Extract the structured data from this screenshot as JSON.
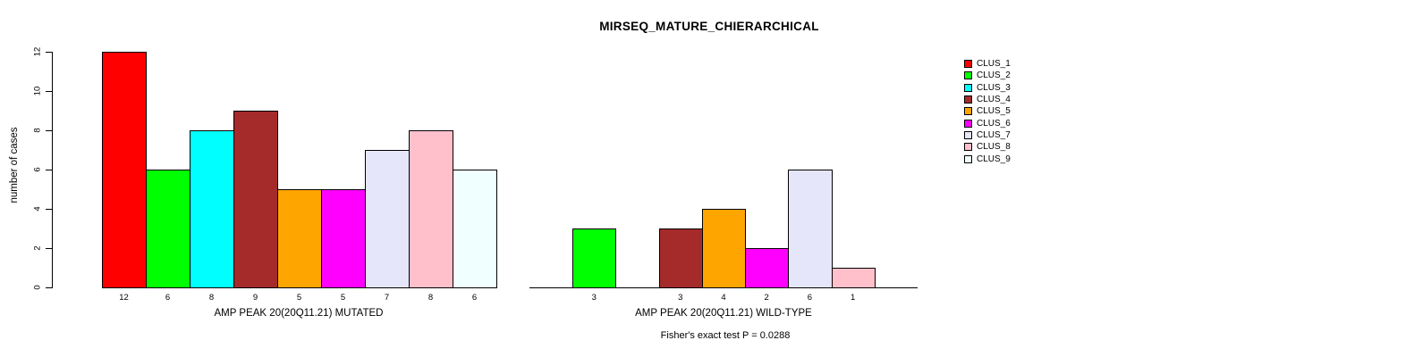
{
  "title": "MIRSEQ_MATURE_CHIERARCHICAL",
  "footer": "Fisher's exact test P = 0.0288",
  "ylabel": "number of cases",
  "legend": {
    "position": "right",
    "entries": [
      {
        "label": "CLUS_1",
        "color": "#FF0000"
      },
      {
        "label": "CLUS_2",
        "color": "#00FF00"
      },
      {
        "label": "CLUS_3",
        "color": "#00FFFF"
      },
      {
        "label": "CLUS_4",
        "color": "#A52A2A"
      },
      {
        "label": "CLUS_5",
        "color": "#FFA500"
      },
      {
        "label": "CLUS_6",
        "color": "#FF00FF"
      },
      {
        "label": "CLUS_7",
        "color": "#E6E6FA"
      },
      {
        "label": "CLUS_8",
        "color": "#FFC0CB"
      },
      {
        "label": "CLUS_9",
        "color": "#F0FFFF"
      }
    ]
  },
  "chart_data": [
    {
      "type": "bar",
      "panel": "mutated",
      "xlabel": "AMP PEAK 20(20Q11.21) MUTATED",
      "ylabel": "number of cases",
      "categories": [
        "CLUS_1",
        "CLUS_2",
        "CLUS_3",
        "CLUS_4",
        "CLUS_5",
        "CLUS_6",
        "CLUS_7",
        "CLUS_8",
        "CLUS_9"
      ],
      "values": [
        12,
        6,
        8,
        9,
        5,
        5,
        7,
        8,
        6
      ],
      "bar_labels": [
        "12",
        "6",
        "8",
        "9",
        "5",
        "5",
        "7",
        "8",
        "6"
      ],
      "ylim": [
        0,
        12
      ],
      "yticks": [
        0,
        2,
        4,
        6,
        8,
        10,
        12
      ],
      "grid": false,
      "show_yaxis": true,
      "show_baseline": false
    },
    {
      "type": "bar",
      "panel": "wild-type",
      "xlabel": "AMP PEAK 20(20Q11.21) WILD-TYPE",
      "categories": [
        "CLUS_1",
        "CLUS_2",
        "CLUS_3",
        "CLUS_4",
        "CLUS_5",
        "CLUS_6",
        "CLUS_7",
        "CLUS_8",
        "CLUS_9"
      ],
      "values": [
        0,
        3,
        0,
        3,
        4,
        2,
        6,
        1,
        0
      ],
      "bar_labels": [
        "",
        "3",
        "",
        "3",
        "4",
        "2",
        "6",
        "1",
        ""
      ],
      "ylim": [
        0,
        12
      ],
      "yticks": [
        0,
        2,
        4,
        6,
        8,
        10,
        12
      ],
      "grid": false,
      "show_yaxis": false,
      "show_baseline": true
    }
  ]
}
